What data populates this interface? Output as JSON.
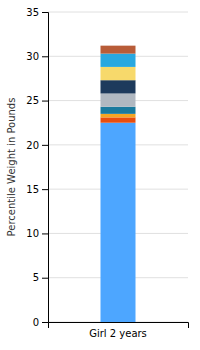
{
  "chart_data": {
    "type": "bar",
    "stacked": true,
    "categories": [
      "Girl 2 years"
    ],
    "series": [
      {
        "color": "#4da6ff",
        "values": [
          22.5
        ]
      },
      {
        "color": "#e84e0f",
        "values": [
          0.6
        ]
      },
      {
        "color": "#f5a623",
        "values": [
          0.4
        ]
      },
      {
        "color": "#1a7a9e",
        "values": [
          0.8
        ]
      },
      {
        "color": "#b0b8c1",
        "values": [
          1.5
        ]
      },
      {
        "color": "#1d3a5c",
        "values": [
          1.5
        ]
      },
      {
        "color": "#f7d96b",
        "values": [
          1.5
        ]
      },
      {
        "color": "#29a8e0",
        "values": [
          1.5
        ]
      },
      {
        "color": "#b85c38",
        "values": [
          0.9
        ]
      }
    ],
    "ylabel": "Percentile Weight in Pounds",
    "ylim": [
      0,
      35
    ],
    "yticks": [
      0,
      5,
      10,
      15,
      20,
      25,
      30,
      35
    ],
    "grid": true
  }
}
